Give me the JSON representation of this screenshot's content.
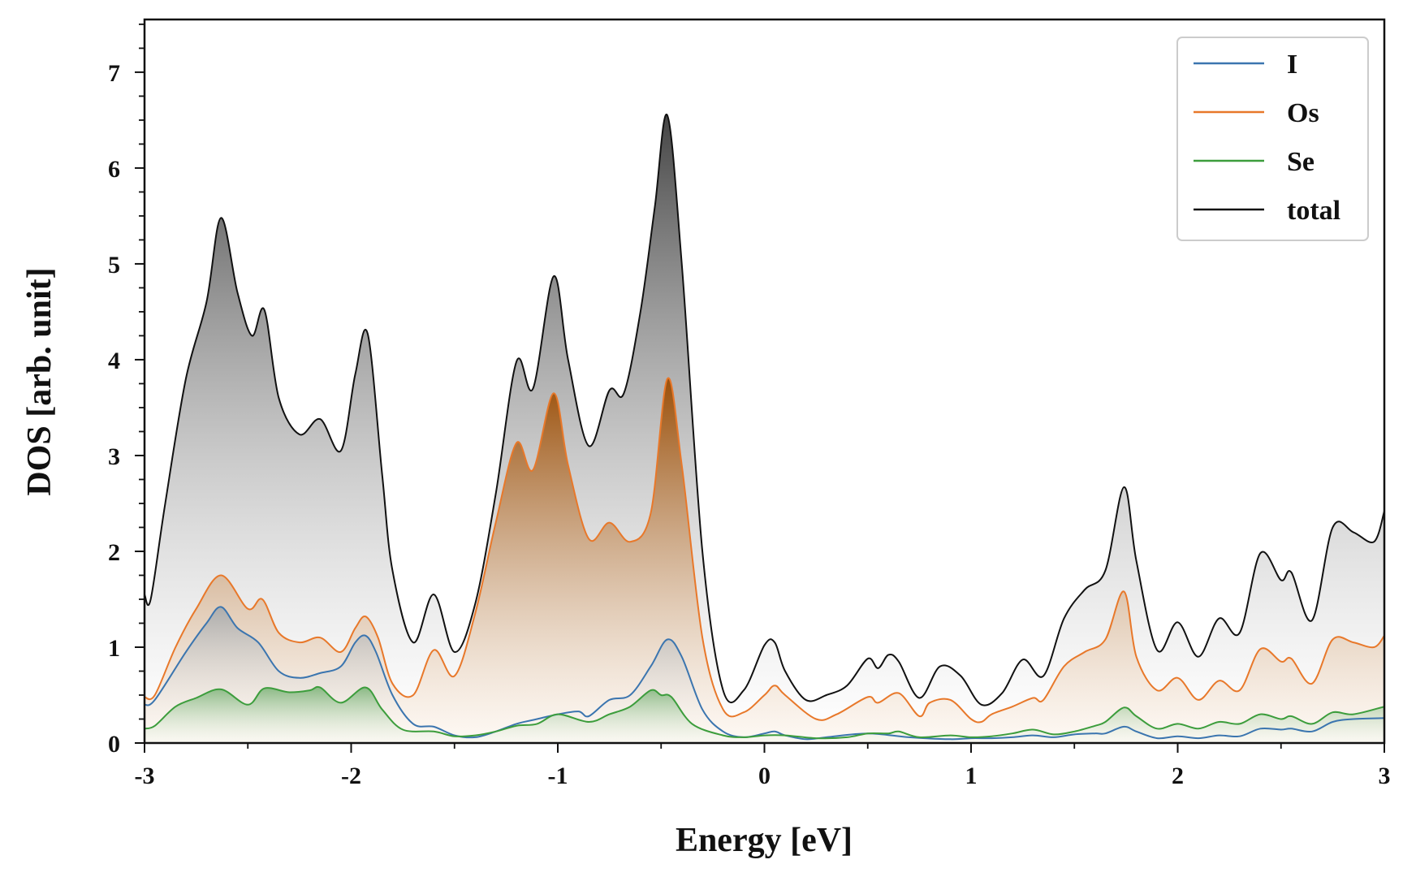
{
  "chart_data": {
    "type": "area",
    "title": "",
    "xlabel": "Energy [eV]",
    "ylabel": "DOS [arb. unit]",
    "xlim": [
      -3,
      3
    ],
    "ylim": [
      0,
      7.55
    ],
    "xticks": [
      -3,
      -2,
      -1,
      0,
      1,
      2,
      3
    ],
    "yticks": [
      0,
      1,
      2,
      3,
      4,
      5,
      6,
      7
    ],
    "xtick_labels": [
      "-3",
      "-2",
      "-1",
      "0",
      "1",
      "2",
      "3"
    ],
    "ytick_labels": [
      "0",
      "1",
      "2",
      "3",
      "4",
      "5",
      "6",
      "7"
    ],
    "grid": false,
    "legend_position": "top-right",
    "series": [
      {
        "name": "I",
        "color": "#3b75af",
        "x": [
          -3,
          -2.95,
          -2.8,
          -2.7,
          -2.63,
          -2.55,
          -2.45,
          -2.35,
          -2.25,
          -2.15,
          -2.05,
          -1.98,
          -1.93,
          -1.88,
          -1.8,
          -1.7,
          -1.6,
          -1.5,
          -1.4,
          -1.3,
          -1.2,
          -1.1,
          -1.0,
          -0.9,
          -0.85,
          -0.75,
          -0.65,
          -0.55,
          -0.47,
          -0.4,
          -0.3,
          -0.2,
          -0.1,
          0,
          0.05,
          0.1,
          0.2,
          0.3,
          0.5,
          0.7,
          0.9,
          1.0,
          1.1,
          1.2,
          1.3,
          1.4,
          1.5,
          1.6,
          1.65,
          1.74,
          1.8,
          1.9,
          2.0,
          2.1,
          2.2,
          2.3,
          2.4,
          2.5,
          2.55,
          2.65,
          2.75,
          2.85,
          3.0
        ],
        "values": [
          0.4,
          0.45,
          0.95,
          1.25,
          1.42,
          1.2,
          1.05,
          0.75,
          0.68,
          0.73,
          0.8,
          1.05,
          1.12,
          0.95,
          0.5,
          0.2,
          0.17,
          0.08,
          0.06,
          0.12,
          0.2,
          0.25,
          0.3,
          0.33,
          0.28,
          0.45,
          0.5,
          0.8,
          1.08,
          0.9,
          0.35,
          0.12,
          0.06,
          0.1,
          0.12,
          0.08,
          0.04,
          0.06,
          0.1,
          0.06,
          0.04,
          0.05,
          0.05,
          0.06,
          0.08,
          0.06,
          0.09,
          0.1,
          0.1,
          0.17,
          0.12,
          0.05,
          0.07,
          0.05,
          0.08,
          0.07,
          0.15,
          0.14,
          0.15,
          0.12,
          0.22,
          0.25,
          0.26
        ]
      },
      {
        "name": "Os",
        "color": "#e8782a",
        "x": [
          -3,
          -2.95,
          -2.85,
          -2.75,
          -2.63,
          -2.5,
          -2.43,
          -2.35,
          -2.25,
          -2.15,
          -2.05,
          -1.98,
          -1.93,
          -1.87,
          -1.8,
          -1.7,
          -1.6,
          -1.5,
          -1.4,
          -1.3,
          -1.2,
          -1.12,
          -1.02,
          -0.95,
          -0.85,
          -0.75,
          -0.65,
          -0.55,
          -0.47,
          -0.4,
          -0.3,
          -0.2,
          -0.1,
          0,
          0.05,
          0.1,
          0.25,
          0.35,
          0.5,
          0.55,
          0.65,
          0.75,
          0.8,
          0.9,
          1.0,
          1.05,
          1.1,
          1.2,
          1.3,
          1.35,
          1.45,
          1.55,
          1.65,
          1.74,
          1.8,
          1.9,
          2.0,
          2.1,
          2.2,
          2.3,
          2.4,
          2.5,
          2.55,
          2.65,
          2.75,
          2.85,
          2.95,
          3.0
        ],
        "values": [
          0.48,
          0.5,
          1.0,
          1.4,
          1.75,
          1.4,
          1.5,
          1.15,
          1.05,
          1.1,
          0.95,
          1.2,
          1.32,
          1.1,
          0.62,
          0.5,
          0.97,
          0.7,
          1.35,
          2.3,
          3.13,
          2.85,
          3.65,
          2.9,
          2.13,
          2.3,
          2.1,
          2.4,
          3.8,
          2.9,
          1.1,
          0.35,
          0.32,
          0.5,
          0.6,
          0.5,
          0.25,
          0.3,
          0.48,
          0.42,
          0.52,
          0.28,
          0.42,
          0.45,
          0.25,
          0.22,
          0.3,
          0.38,
          0.47,
          0.45,
          0.8,
          0.95,
          1.08,
          1.58,
          0.9,
          0.55,
          0.68,
          0.45,
          0.65,
          0.55,
          0.98,
          0.85,
          0.88,
          0.62,
          1.08,
          1.05,
          1.0,
          1.12
        ]
      },
      {
        "name": "Se",
        "color": "#3c9d3c",
        "x": [
          -3,
          -2.95,
          -2.85,
          -2.75,
          -2.63,
          -2.5,
          -2.42,
          -2.3,
          -2.2,
          -2.15,
          -2.05,
          -1.93,
          -1.85,
          -1.75,
          -1.6,
          -1.5,
          -1.4,
          -1.3,
          -1.2,
          -1.1,
          -1.0,
          -0.85,
          -0.75,
          -0.65,
          -0.55,
          -0.5,
          -0.45,
          -0.35,
          -0.2,
          -0.1,
          0,
          0.1,
          0.25,
          0.4,
          0.5,
          0.6,
          0.65,
          0.75,
          0.9,
          1.0,
          1.1,
          1.2,
          1.3,
          1.4,
          1.5,
          1.6,
          1.65,
          1.74,
          1.8,
          1.9,
          2.0,
          2.1,
          2.2,
          2.3,
          2.4,
          2.5,
          2.55,
          2.65,
          2.75,
          2.85,
          3.0
        ],
        "values": [
          0.15,
          0.18,
          0.38,
          0.47,
          0.56,
          0.4,
          0.57,
          0.53,
          0.55,
          0.58,
          0.42,
          0.58,
          0.35,
          0.14,
          0.12,
          0.07,
          0.08,
          0.12,
          0.18,
          0.2,
          0.3,
          0.22,
          0.3,
          0.38,
          0.55,
          0.5,
          0.48,
          0.2,
          0.08,
          0.06,
          0.08,
          0.08,
          0.05,
          0.06,
          0.1,
          0.1,
          0.12,
          0.06,
          0.08,
          0.06,
          0.07,
          0.1,
          0.14,
          0.09,
          0.12,
          0.18,
          0.22,
          0.37,
          0.28,
          0.15,
          0.2,
          0.15,
          0.22,
          0.2,
          0.3,
          0.25,
          0.28,
          0.2,
          0.32,
          0.3,
          0.38
        ]
      },
      {
        "name": "total",
        "color": "#111111",
        "x": [
          -3,
          -2.97,
          -2.9,
          -2.8,
          -2.7,
          -2.63,
          -2.55,
          -2.48,
          -2.42,
          -2.35,
          -2.25,
          -2.15,
          -2.05,
          -1.98,
          -1.92,
          -1.85,
          -1.8,
          -1.7,
          -1.6,
          -1.5,
          -1.4,
          -1.3,
          -1.2,
          -1.12,
          -1.02,
          -0.95,
          -0.85,
          -0.75,
          -0.68,
          -0.6,
          -0.53,
          -0.47,
          -0.4,
          -0.3,
          -0.2,
          -0.1,
          0,
          0.05,
          0.1,
          0.2,
          0.3,
          0.4,
          0.5,
          0.55,
          0.6,
          0.65,
          0.75,
          0.85,
          0.95,
          1.05,
          1.15,
          1.25,
          1.35,
          1.45,
          1.55,
          1.65,
          1.74,
          1.8,
          1.9,
          2.0,
          2.1,
          2.2,
          2.3,
          2.4,
          2.5,
          2.55,
          2.65,
          2.75,
          2.85,
          2.95,
          3.0
        ],
        "values": [
          1.55,
          1.5,
          2.5,
          3.8,
          4.6,
          5.48,
          4.7,
          4.25,
          4.52,
          3.6,
          3.22,
          3.38,
          3.05,
          3.85,
          4.27,
          2.8,
          1.8,
          1.05,
          1.55,
          0.95,
          1.45,
          2.6,
          3.98,
          3.7,
          4.87,
          4.0,
          3.1,
          3.68,
          3.65,
          4.5,
          5.6,
          6.55,
          5.0,
          2.0,
          0.55,
          0.55,
          1.02,
          1.05,
          0.75,
          0.45,
          0.5,
          0.6,
          0.88,
          0.78,
          0.92,
          0.85,
          0.47,
          0.8,
          0.7,
          0.4,
          0.52,
          0.87,
          0.7,
          1.3,
          1.6,
          1.8,
          2.67,
          1.9,
          0.97,
          1.26,
          0.9,
          1.3,
          1.15,
          1.98,
          1.7,
          1.78,
          1.28,
          2.25,
          2.2,
          2.1,
          2.42
        ]
      }
    ]
  }
}
